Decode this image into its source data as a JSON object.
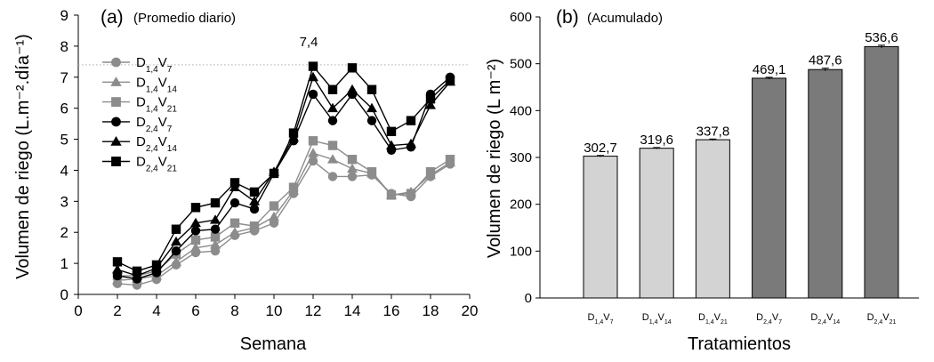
{
  "panel_a": {
    "tag": "(a)",
    "subtitle": "(Promedio diario)",
    "xlabel": "Semana",
    "ylabel": "Volumen de riego (L.m⁻².día⁻¹)",
    "peak_label": "7,4"
  },
  "panel_b": {
    "tag": "(b)",
    "subtitle": "(Acumulado)",
    "xlabel": "Tratamientos",
    "ylabel": "Volumen de riego (L m⁻²)"
  },
  "colors": {
    "d14": "#8c8c8c",
    "d24": "#000000",
    "bar_light": "#d3d3d3",
    "bar_dark": "#7a7a7a",
    "refline": "#b0b0b0"
  },
  "chart_data": [
    {
      "type": "line",
      "xlim": [
        0,
        20
      ],
      "ylim": [
        0,
        9
      ],
      "xticks": [
        0,
        2,
        4,
        6,
        8,
        10,
        12,
        14,
        16,
        18,
        20
      ],
      "yticks": [
        0,
        1,
        2,
        3,
        4,
        5,
        6,
        7,
        8,
        9
      ],
      "reference_line_y": 7.4,
      "x": [
        2,
        3,
        4,
        5,
        6,
        7,
        8,
        9,
        10,
        11,
        12,
        13,
        14,
        15,
        16,
        17,
        18,
        19
      ],
      "series": [
        {
          "name": "D1,4V7",
          "dose": "1,4",
          "vol": "7",
          "marker": "circle",
          "color": "#8c8c8c",
          "values": [
            0.35,
            0.3,
            0.48,
            0.95,
            1.35,
            1.4,
            1.9,
            2.05,
            2.3,
            3.25,
            4.3,
            3.8,
            3.8,
            3.85,
            3.25,
            3.15,
            3.8,
            4.2
          ]
        },
        {
          "name": "D1,4V14",
          "dose": "1,4",
          "vol": "14",
          "marker": "triangle",
          "color": "#8c8c8c",
          "values": [
            0.45,
            0.5,
            0.6,
            1.05,
            1.5,
            1.6,
            2.0,
            2.15,
            2.5,
            3.35,
            4.55,
            4.35,
            4.05,
            3.9,
            3.2,
            3.3,
            3.85,
            4.25
          ]
        },
        {
          "name": "D1,4V21",
          "dose": "1,4",
          "vol": "21",
          "marker": "square",
          "color": "#8c8c8c",
          "values": [
            0.6,
            0.6,
            0.75,
            1.3,
            1.75,
            1.85,
            2.3,
            2.2,
            2.85,
            3.45,
            4.95,
            4.8,
            4.35,
            3.95,
            3.2,
            3.25,
            3.95,
            4.35
          ]
        },
        {
          "name": "D2,4V7",
          "dose": "2,4",
          "vol": "7",
          "marker": "circle",
          "color": "#000000",
          "values": [
            0.6,
            0.5,
            0.7,
            1.4,
            2.05,
            2.1,
            2.95,
            2.75,
            3.9,
            4.95,
            6.45,
            5.6,
            6.45,
            5.6,
            4.65,
            4.75,
            6.45,
            7.0
          ]
        },
        {
          "name": "D2,4V14",
          "dose": "2,4",
          "vol": "14",
          "marker": "triangle",
          "color": "#000000",
          "values": [
            0.8,
            0.6,
            0.85,
            1.7,
            2.3,
            2.4,
            3.45,
            3.0,
            3.95,
            5.05,
            7.0,
            6.0,
            6.6,
            6.0,
            4.8,
            4.85,
            6.1,
            6.85
          ]
        },
        {
          "name": "D2,4V21",
          "dose": "2,4",
          "vol": "21",
          "marker": "square",
          "color": "#000000",
          "values": [
            1.05,
            0.75,
            0.95,
            2.1,
            2.8,
            2.95,
            3.6,
            3.3,
            3.9,
            5.2,
            7.35,
            6.6,
            7.3,
            6.6,
            5.25,
            5.6,
            6.3,
            6.9
          ]
        }
      ]
    },
    {
      "type": "bar",
      "ylim": [
        0,
        600
      ],
      "yticks": [
        0,
        100,
        200,
        300,
        400,
        500,
        600
      ],
      "categories": [
        {
          "d": "1,4",
          "v": "7"
        },
        {
          "d": "1,4",
          "v": "14"
        },
        {
          "d": "1,4",
          "v": "21"
        },
        {
          "d": "2,4",
          "v": "7"
        },
        {
          "d": "2,4",
          "v": "14"
        },
        {
          "d": "2,4",
          "v": "21"
        }
      ],
      "values": [
        302.7,
        319.6,
        337.8,
        469.1,
        487.6,
        536.6
      ],
      "errors": [
        1.5,
        1.5,
        1.5,
        2.0,
        3.0,
        3.0
      ],
      "value_labels": [
        "302,7",
        "319,6",
        "337,8",
        "469,1",
        "487,6",
        "536,6"
      ]
    }
  ]
}
